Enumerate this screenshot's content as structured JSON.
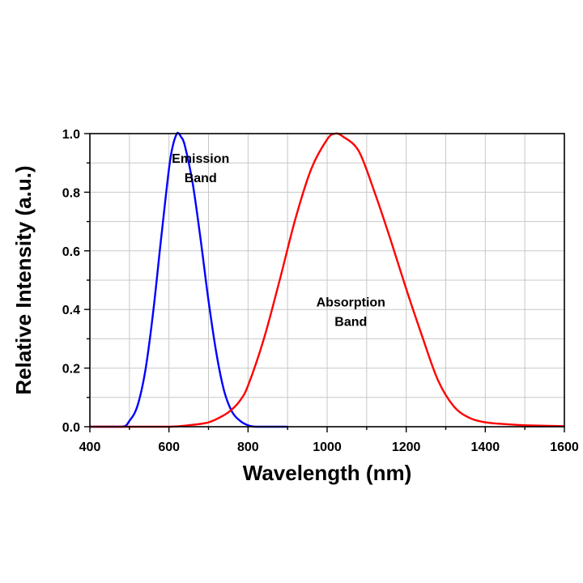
{
  "chart_data": {
    "type": "line",
    "title": "",
    "xlabel": "Wavelength (nm)",
    "ylabel": "Relative Intensity (a.u.)",
    "xlim": [
      400,
      1600
    ],
    "ylim": [
      0,
      1.0
    ],
    "xticks": [
      400,
      600,
      800,
      1000,
      1200,
      1400,
      1600
    ],
    "yticks": [
      0.0,
      0.2,
      0.4,
      0.6,
      0.8,
      1.0
    ],
    "xtick_labels": [
      "400",
      "600",
      "800",
      "1000",
      "1200",
      "1400",
      "1600"
    ],
    "ytick_labels": [
      "0.0",
      "0.2",
      "0.4",
      "0.6",
      "0.8",
      "1.0"
    ],
    "grid": true,
    "series": [
      {
        "name": "Emission Band",
        "color": "#0000ff",
        "x": [
          400,
          480,
          500,
          520,
          540,
          560,
          580,
          600,
          610,
          620,
          625,
          630,
          640,
          660,
          680,
          700,
          720,
          740,
          760,
          780,
          800,
          820,
          860,
          900
        ],
        "y": [
          0.0,
          0.0,
          0.02,
          0.07,
          0.19,
          0.39,
          0.64,
          0.88,
          0.96,
          1.0,
          1.0,
          0.99,
          0.96,
          0.83,
          0.64,
          0.43,
          0.25,
          0.12,
          0.05,
          0.02,
          0.005,
          0.0,
          0.0,
          0.0
        ]
      },
      {
        "name": "Absorption Band",
        "color": "#ff0000",
        "x": [
          400,
          500,
          600,
          650,
          700,
          740,
          760,
          780,
          800,
          840,
          880,
          920,
          960,
          1000,
          1020,
          1040,
          1080,
          1120,
          1160,
          1200,
          1240,
          1280,
          1320,
          1360,
          1400,
          1440,
          1500,
          1600
        ],
        "y": [
          0.0,
          0.0,
          0.0,
          0.005,
          0.015,
          0.04,
          0.06,
          0.09,
          0.14,
          0.3,
          0.5,
          0.71,
          0.88,
          0.98,
          1.0,
          0.99,
          0.94,
          0.8,
          0.64,
          0.47,
          0.31,
          0.16,
          0.07,
          0.03,
          0.015,
          0.01,
          0.005,
          0.002
        ]
      }
    ],
    "annotations": [
      {
        "lines": [
          "Emission",
          "Band"
        ],
        "x": 680,
        "y": 0.9
      },
      {
        "lines": [
          "Absorption",
          "Band"
        ],
        "x": 1060,
        "y": 0.41
      }
    ]
  }
}
